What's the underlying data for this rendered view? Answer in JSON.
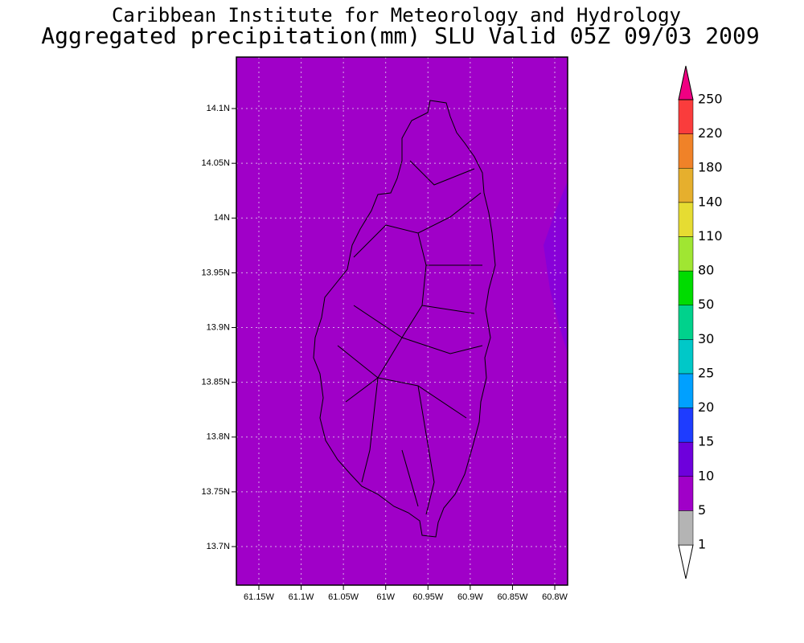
{
  "header": {
    "title": "Caribbean Institute for Meteorology and Hydrology",
    "subtitle": "Aggregated precipitation(mm) SLU Valid 05Z 09/03 2009"
  },
  "map": {
    "fill_color": "#a000c8",
    "xlim": [
      -61.1766,
      -60.7848
    ],
    "ylim": [
      13.6648,
      14.147
    ],
    "xticks": [
      {
        "value": -61.15,
        "label": "61.15W"
      },
      {
        "value": -61.1,
        "label": "61.1W"
      },
      {
        "value": -61.05,
        "label": "61.05W"
      },
      {
        "value": -61.0,
        "label": "61W"
      },
      {
        "value": -60.95,
        "label": "60.95W"
      },
      {
        "value": -60.9,
        "label": "60.9W"
      },
      {
        "value": -60.85,
        "label": "60.85W"
      },
      {
        "value": -60.8,
        "label": "60.8W"
      }
    ],
    "yticks": [
      {
        "value": 14.1,
        "label": "14.1N"
      },
      {
        "value": 14.05,
        "label": "14.05N"
      },
      {
        "value": 14.0,
        "label": "14N"
      },
      {
        "value": 13.95,
        "label": "13.95N"
      },
      {
        "value": 13.9,
        "label": "13.9N"
      },
      {
        "value": 13.85,
        "label": "13.85N"
      },
      {
        "value": 13.8,
        "label": "13.8N"
      },
      {
        "value": 13.75,
        "label": "13.75N"
      },
      {
        "value": 13.7,
        "label": "13.7N"
      }
    ],
    "grid": true
  },
  "colorbar": {
    "levels": [
      1,
      5,
      10,
      15,
      20,
      25,
      30,
      50,
      80,
      110,
      140,
      180,
      220,
      250
    ],
    "colors": [
      "#ffffff",
      "#b4b4b4",
      "#a000c8",
      "#6e00dc",
      "#1e3cff",
      "#00a0ff",
      "#00c8c8",
      "#00d28c",
      "#00dc00",
      "#a0e632",
      "#e6dc32",
      "#e6af2d",
      "#f08228",
      "#fa3c3c",
      "#f00082"
    ]
  }
}
